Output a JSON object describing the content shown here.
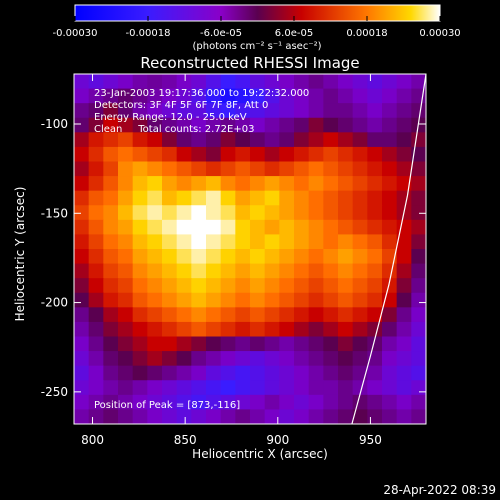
{
  "chart_data": {
    "type": "heatmap",
    "title": "Reconstructed RHESSI Image",
    "xlabel": "Heliocentric X (arcsec)",
    "ylabel": "Heliocentric Y (arcsec)",
    "xlim": [
      790,
      980
    ],
    "ylim": [
      -268,
      -72
    ],
    "x_ticks": [
      800,
      850,
      900,
      950
    ],
    "y_ticks": [
      -100,
      -150,
      -200,
      -250
    ],
    "colorbar": {
      "range": [
        -0.0003,
        0.0003
      ],
      "ticks": [
        "-0.00030",
        "-0.00018",
        "-6.0e-05",
        "6.0e-05",
        "0.00018",
        "0.00030"
      ],
      "tick_values": [
        -0.0003,
        -0.00018,
        -6e-05,
        6e-05,
        0.00018,
        0.0003
      ],
      "unit_label": "(photons cm⁻² s⁻¹ asec⁻²)",
      "colormap": "RHESSI blue-purple-red-yellow-white"
    },
    "annotations": [
      "23-Jan-2003 19:17:36.000 to 19:22:32.000",
      "Detectors: 3F 4F 5F 6F 7F 8F, Att 0",
      "Energy Range: 12.0 - 25.0 keV",
      "Clean     Total counts: 2.72E+03"
    ],
    "peak_label": "Position of Peak = [873,-116]",
    "peak_position": [
      873,
      -116
    ],
    "limb_arc": [
      [
        940,
        -268
      ],
      [
        950,
        -230
      ],
      [
        960,
        -190
      ],
      [
        970,
        -140
      ],
      [
        980,
        -72
      ]
    ],
    "image_grid": {
      "x_range": [
        790,
        980
      ],
      "y_range": [
        -268,
        -72
      ],
      "rows": 24,
      "cols": 24,
      "flux": [
        [
          -10,
          -12,
          -10,
          -8,
          -6,
          -5,
          -6,
          -8,
          -10,
          -14,
          -18,
          -16,
          -12,
          -10,
          -8,
          -6,
          -4,
          -6,
          -8,
          -10,
          -12,
          -10,
          -8,
          -6
        ],
        [
          -8,
          -6,
          -4,
          -2,
          -4,
          -6,
          -8,
          -10,
          -14,
          -20,
          -24,
          -22,
          -18,
          -14,
          -10,
          -8,
          -6,
          -4,
          -6,
          -8,
          -10,
          -8,
          -6,
          -4
        ],
        [
          -4,
          -2,
          2,
          -2,
          -6,
          -8,
          -10,
          -12,
          -12,
          -16,
          -18,
          -16,
          -14,
          -12,
          -10,
          -8,
          -6,
          -4,
          -4,
          -6,
          -8,
          -6,
          -4,
          -2
        ],
        [
          -2,
          2,
          6,
          4,
          2,
          -2,
          -4,
          -6,
          -8,
          -6,
          -4,
          -6,
          -8,
          -6,
          -4,
          -2,
          2,
          0,
          -2,
          -4,
          -6,
          -4,
          -2,
          0
        ],
        [
          4,
          8,
          10,
          12,
          8,
          6,
          2,
          -2,
          -4,
          -2,
          2,
          0,
          -2,
          -4,
          -2,
          2,
          4,
          6,
          4,
          2,
          -2,
          -2,
          0,
          2
        ],
        [
          6,
          10,
          14,
          16,
          14,
          12,
          10,
          6,
          4,
          2,
          6,
          8,
          6,
          4,
          6,
          8,
          10,
          12,
          10,
          8,
          6,
          4,
          2,
          0
        ],
        [
          4,
          8,
          12,
          18,
          20,
          18,
          16,
          14,
          12,
          10,
          12,
          14,
          12,
          10,
          12,
          14,
          16,
          14,
          12,
          10,
          8,
          6,
          4,
          2
        ],
        [
          6,
          10,
          14,
          18,
          22,
          24,
          20,
          18,
          20,
          22,
          18,
          16,
          18,
          20,
          18,
          16,
          18,
          16,
          14,
          12,
          10,
          8,
          6,
          4
        ],
        [
          10,
          14,
          16,
          20,
          24,
          26,
          22,
          24,
          26,
          28,
          24,
          20,
          22,
          24,
          20,
          18,
          16,
          14,
          12,
          10,
          8,
          6,
          4,
          2
        ],
        [
          12,
          16,
          18,
          22,
          26,
          28,
          26,
          28,
          30,
          28,
          26,
          22,
          24,
          22,
          20,
          18,
          16,
          14,
          12,
          10,
          8,
          6,
          4,
          2
        ],
        [
          10,
          14,
          18,
          20,
          24,
          26,
          28,
          30,
          32,
          30,
          28,
          24,
          22,
          20,
          22,
          20,
          18,
          16,
          14,
          12,
          10,
          8,
          6,
          4
        ],
        [
          8,
          12,
          16,
          18,
          22,
          24,
          26,
          28,
          30,
          28,
          26,
          24,
          22,
          24,
          22,
          20,
          18,
          16,
          18,
          16,
          14,
          10,
          6,
          2
        ],
        [
          6,
          10,
          14,
          16,
          20,
          22,
          24,
          26,
          28,
          26,
          24,
          22,
          24,
          22,
          20,
          18,
          16,
          18,
          20,
          18,
          16,
          12,
          6,
          0
        ],
        [
          4,
          8,
          12,
          14,
          18,
          20,
          22,
          24,
          26,
          24,
          22,
          20,
          22,
          20,
          18,
          16,
          14,
          16,
          18,
          16,
          14,
          10,
          4,
          -2
        ],
        [
          2,
          6,
          10,
          12,
          16,
          18,
          20,
          22,
          24,
          22,
          20,
          18,
          20,
          18,
          16,
          14,
          12,
          14,
          16,
          14,
          12,
          8,
          2,
          -4
        ],
        [
          0,
          4,
          8,
          10,
          14,
          16,
          18,
          20,
          22,
          20,
          18,
          16,
          18,
          16,
          14,
          12,
          10,
          12,
          14,
          12,
          10,
          6,
          0,
          -6
        ],
        [
          -4,
          0,
          4,
          6,
          10,
          12,
          14,
          16,
          18,
          16,
          14,
          12,
          14,
          12,
          10,
          8,
          6,
          8,
          10,
          8,
          6,
          2,
          -4,
          -8
        ],
        [
          -6,
          -2,
          2,
          4,
          6,
          8,
          10,
          12,
          14,
          12,
          10,
          8,
          10,
          8,
          6,
          4,
          2,
          4,
          6,
          4,
          2,
          -2,
          -6,
          -10
        ],
        [
          -8,
          -4,
          0,
          2,
          4,
          6,
          6,
          4,
          2,
          0,
          -2,
          -4,
          -2,
          -4,
          -6,
          -4,
          -2,
          0,
          2,
          0,
          -2,
          -6,
          -8,
          -12
        ],
        [
          -10,
          -6,
          -2,
          0,
          2,
          4,
          2,
          0,
          -4,
          -6,
          -8,
          -10,
          -12,
          -10,
          -8,
          -6,
          -4,
          -2,
          0,
          -2,
          -4,
          -8,
          -10,
          -12
        ],
        [
          -12,
          -8,
          -4,
          -2,
          0,
          -2,
          -4,
          -6,
          -8,
          -12,
          -14,
          -16,
          -14,
          -12,
          -10,
          -8,
          -6,
          -4,
          -2,
          -4,
          -6,
          -10,
          -12,
          -14
        ],
        [
          -10,
          -8,
          -6,
          -4,
          -6,
          -8,
          -10,
          -12,
          -14,
          -16,
          -18,
          -16,
          -14,
          -12,
          -10,
          -8,
          -6,
          -6,
          -4,
          -6,
          -8,
          -10,
          -12,
          -10
        ],
        [
          -8,
          -6,
          -4,
          -6,
          -8,
          -10,
          -12,
          -14,
          -16,
          -14,
          -12,
          -10,
          -8,
          -6,
          -8,
          -10,
          -8,
          -6,
          -4,
          -2,
          -4,
          -6,
          -8,
          -6
        ],
        [
          -6,
          -4,
          -2,
          -4,
          -6,
          -8,
          -10,
          -12,
          -10,
          -8,
          -6,
          -4,
          -6,
          -8,
          -10,
          -8,
          -6,
          -4,
          -2,
          0,
          -2,
          -4,
          -6,
          -4
        ]
      ]
    }
  },
  "timestamp": "28-Apr-2022 08:39"
}
